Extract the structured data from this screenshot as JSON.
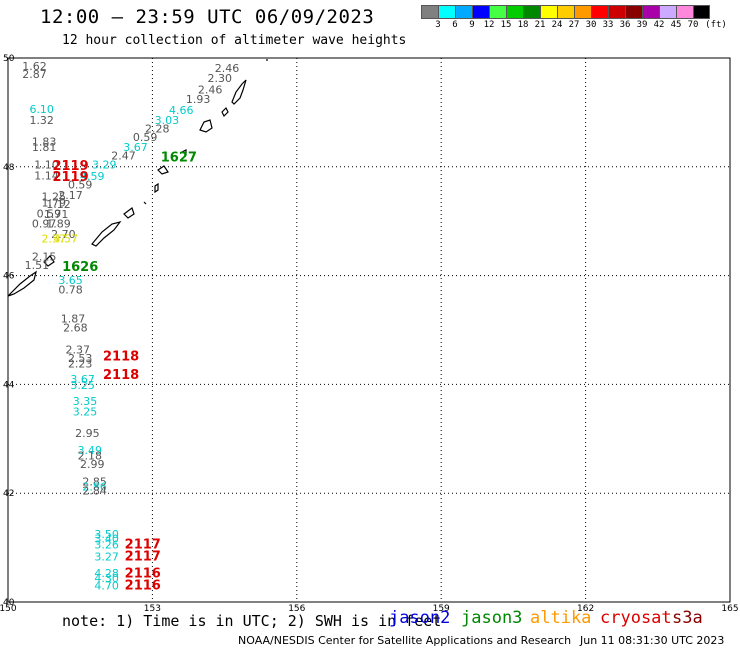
{
  "header": {
    "title": "12:00 — 23:59 UTC 06/09/2023",
    "subtitle": "12 hour collection of altimeter wave heights"
  },
  "legend": {
    "unit": "(ft)",
    "colors": [
      "#808080",
      "#00ffff",
      "#00aaff",
      "#0000ff",
      "#44ff44",
      "#00cc00",
      "#008800",
      "#ffff00",
      "#ffcc00",
      "#ff9900",
      "#ff0000",
      "#cc0000",
      "#880000",
      "#aa00aa",
      "#ccaaff",
      "#ff88dd",
      "#000000"
    ],
    "labels": [
      "3",
      "6",
      "9",
      "12",
      "15",
      "18",
      "21",
      "24",
      "27",
      "30",
      "33",
      "36",
      "39",
      "42",
      "45",
      "70"
    ]
  },
  "map": {
    "x_ticks": [
      "150",
      "153",
      "156",
      "159",
      "162",
      "165"
    ],
    "y_ticks": [
      "50",
      "48",
      "46",
      "44",
      "42",
      "40"
    ],
    "lon_range": [
      150,
      165
    ],
    "lat_range": [
      40,
      50
    ]
  },
  "observations": [
    {
      "t": "2.46",
      "lon": 154.55,
      "lat": 49.74,
      "c": "#555555"
    },
    {
      "t": "2.30",
      "lon": 154.4,
      "lat": 49.56,
      "c": "#555555"
    },
    {
      "t": "2.46",
      "lon": 154.2,
      "lat": 49.35,
      "c": "#555555"
    },
    {
      "t": "1.93",
      "lon": 153.95,
      "lat": 49.17,
      "c": "#555555"
    },
    {
      "t": "4.66",
      "lon": 153.6,
      "lat": 48.97,
      "c": "#00cccc"
    },
    {
      "t": "3.03",
      "lon": 153.3,
      "lat": 48.79,
      "c": "#00cccc"
    },
    {
      "t": "2.28",
      "lon": 153.1,
      "lat": 48.63,
      "c": "#555555"
    },
    {
      "t": "0.59",
      "lon": 152.85,
      "lat": 48.47,
      "c": "#555555"
    },
    {
      "t": "3.67",
      "lon": 152.65,
      "lat": 48.29,
      "c": "#00cccc"
    },
    {
      "t": "2.47",
      "lon": 152.4,
      "lat": 48.13,
      "c": "#555555"
    },
    {
      "t": "3.29",
      "lon": 152.0,
      "lat": 47.97,
      "c": "#00cccc"
    },
    {
      "t": "4.59",
      "lon": 151.75,
      "lat": 47.76,
      "c": "#00cccc"
    },
    {
      "t": "0.59",
      "lon": 151.5,
      "lat": 47.6,
      "c": "#555555"
    },
    {
      "t": "2.17",
      "lon": 151.3,
      "lat": 47.41,
      "c": "#555555"
    },
    {
      "t": "1.12",
      "lon": 151.05,
      "lat": 47.24,
      "c": "#555555"
    },
    {
      "t": "0.59",
      "lon": 150.85,
      "lat": 47.07,
      "c": "#555555"
    },
    {
      "t": "0.97",
      "lon": 150.75,
      "lat": 46.88,
      "c": "#555555"
    },
    {
      "t": "1.62",
      "lon": 150.55,
      "lat": 49.78,
      "c": "#555555"
    },
    {
      "t": "2.87",
      "lon": 150.55,
      "lat": 49.63,
      "c": "#555555"
    },
    {
      "t": "6.10",
      "lon": 150.7,
      "lat": 48.99,
      "c": "#00cccc"
    },
    {
      "t": "1.32",
      "lon": 150.7,
      "lat": 48.79,
      "c": "#555555"
    },
    {
      "t": "1.83",
      "lon": 150.75,
      "lat": 48.39,
      "c": "#555555"
    },
    {
      "t": "1.81",
      "lon": 150.75,
      "lat": 48.29,
      "c": "#555555"
    },
    {
      "t": "1.10",
      "lon": 150.8,
      "lat": 47.97,
      "c": "#555555"
    },
    {
      "t": "1.14",
      "lon": 150.8,
      "lat": 47.77,
      "c": "#555555"
    },
    {
      "t": "1.25",
      "lon": 150.95,
      "lat": 47.38,
      "c": "#555555"
    },
    {
      "t": "1.79",
      "lon": 150.95,
      "lat": 47.27,
      "c": "#555555"
    },
    {
      "t": "1.71",
      "lon": 151.0,
      "lat": 47.06,
      "c": "#555555"
    },
    {
      "t": "1.89",
      "lon": 151.05,
      "lat": 46.88,
      "c": "#555555"
    },
    {
      "t": "2.70",
      "lon": 151.15,
      "lat": 46.69,
      "c": "#555555"
    },
    {
      "t": "2.57",
      "lon": 150.95,
      "lat": 46.61,
      "c": "#dddd00"
    },
    {
      "t": "4.57",
      "lon": 151.2,
      "lat": 46.61,
      "c": "#dddd00"
    },
    {
      "t": "2.15",
      "lon": 150.75,
      "lat": 46.28,
      "c": "#555555"
    },
    {
      "t": "1.51",
      "lon": 150.6,
      "lat": 46.12,
      "c": "#555555"
    },
    {
      "t": "3.65",
      "lon": 151.3,
      "lat": 45.85,
      "c": "#00cccc"
    },
    {
      "t": "0.78",
      "lon": 151.3,
      "lat": 45.67,
      "c": "#555555"
    },
    {
      "t": "1.87",
      "lon": 151.35,
      "lat": 45.14,
      "c": "#555555"
    },
    {
      "t": "2.68",
      "lon": 151.4,
      "lat": 44.97,
      "c": "#555555"
    },
    {
      "t": "2.37",
      "lon": 151.45,
      "lat": 44.57,
      "c": "#555555"
    },
    {
      "t": "2.53",
      "lon": 151.5,
      "lat": 44.41,
      "c": "#555555"
    },
    {
      "t": "2.23",
      "lon": 151.5,
      "lat": 44.31,
      "c": "#555555"
    },
    {
      "t": "3.67",
      "lon": 151.55,
      "lat": 44.03,
      "c": "#00cccc"
    },
    {
      "t": "3.25",
      "lon": 151.55,
      "lat": 43.92,
      "c": "#00cccc"
    },
    {
      "t": "3.35",
      "lon": 151.6,
      "lat": 43.62,
      "c": "#00cccc"
    },
    {
      "t": "3.25",
      "lon": 151.6,
      "lat": 43.43,
      "c": "#00cccc"
    },
    {
      "t": "2.95",
      "lon": 151.65,
      "lat": 43.03,
      "c": "#555555"
    },
    {
      "t": "3.49",
      "lon": 151.7,
      "lat": 42.72,
      "c": "#00cccc"
    },
    {
      "t": "2.18",
      "lon": 151.7,
      "lat": 42.62,
      "c": "#555555"
    },
    {
      "t": "2.99",
      "lon": 151.75,
      "lat": 42.46,
      "c": "#555555"
    },
    {
      "t": "2.85",
      "lon": 151.8,
      "lat": 42.14,
      "c": "#555555"
    },
    {
      "t": "2.86",
      "lon": 151.8,
      "lat": 42.05,
      "c": "#00cccc"
    },
    {
      "t": "2.84",
      "lon": 151.8,
      "lat": 41.98,
      "c": "#555555"
    },
    {
      "t": "3.50",
      "lon": 152.05,
      "lat": 41.18,
      "c": "#00cccc"
    },
    {
      "t": "3.40",
      "lon": 152.05,
      "lat": 41.09,
      "c": "#00cccc"
    },
    {
      "t": "3.26",
      "lon": 152.05,
      "lat": 40.98,
      "c": "#00cccc"
    },
    {
      "t": "3.27",
      "lon": 152.05,
      "lat": 40.76,
      "c": "#00cccc"
    },
    {
      "t": "4.28",
      "lon": 152.05,
      "lat": 40.46,
      "c": "#00cccc"
    },
    {
      "t": "4.30",
      "lon": 152.05,
      "lat": 40.37,
      "c": "#00cccc"
    },
    {
      "t": "4.70",
      "lon": 152.05,
      "lat": 40.23,
      "c": "#00cccc"
    }
  ],
  "track_labels": [
    {
      "t": "2119",
      "lon": 151.3,
      "lat": 47.94,
      "c": "#dd0000"
    },
    {
      "t": "2119",
      "lon": 151.3,
      "lat": 47.74,
      "c": "#dd0000"
    },
    {
      "t": "1627",
      "lon": 153.55,
      "lat": 48.1,
      "c": "#008800"
    },
    {
      "t": "1626",
      "lon": 151.5,
      "lat": 46.08,
      "c": "#008800"
    },
    {
      "t": "2118",
      "lon": 152.35,
      "lat": 44.44,
      "c": "#dd0000"
    },
    {
      "t": "2118",
      "lon": 152.35,
      "lat": 44.1,
      "c": "#dd0000"
    },
    {
      "t": "2117",
      "lon": 152.8,
      "lat": 40.98,
      "c": "#dd0000"
    },
    {
      "t": "2117",
      "lon": 152.8,
      "lat": 40.76,
      "c": "#dd0000"
    },
    {
      "t": "2116",
      "lon": 152.8,
      "lat": 40.45,
      "c": "#dd0000"
    },
    {
      "t": "2116",
      "lon": 152.8,
      "lat": 40.23,
      "c": "#dd0000"
    }
  ],
  "footer": {
    "note": "note: 1) Time is in UTC; 2) SWH is in feet",
    "satellites": [
      {
        "name": "jason2",
        "color": "#0000dd"
      },
      {
        "name": "jason3",
        "color": "#008800"
      },
      {
        "name": "altika",
        "color": "#ff9900"
      },
      {
        "name": "cryosat",
        "color": "#dd0000"
      },
      {
        "name": "s3a",
        "color": "#880000"
      }
    ],
    "credit": "NOAA/NESDIS Center for Satellite Applications and Research",
    "timestamp": "Jun 11 08:31:30 UTC 2023"
  }
}
